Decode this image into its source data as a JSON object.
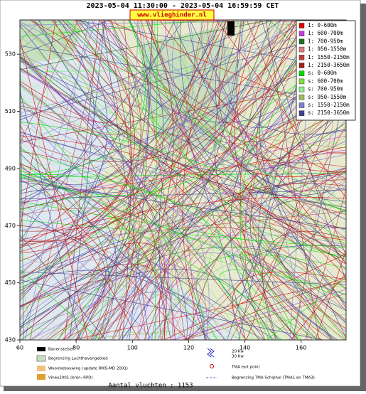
{
  "header": {
    "title": "2023-05-04 11:30:00 - 2023-05-04 16:59:59 CET",
    "site": "www.vlieghinder.nl"
  },
  "map": {
    "xlim": [
      60,
      176
    ],
    "ylim": [
      430,
      542
    ],
    "xticks": [
      60,
      80,
      100,
      120,
      140,
      160
    ],
    "yticks": [
      430,
      450,
      470,
      490,
      510,
      530
    ]
  },
  "legend": [
    {
      "label": "1: 0-600m",
      "color": "#e00000"
    },
    {
      "label": "1: 600-700m",
      "color": "#c040e0"
    },
    {
      "label": "1: 700-950m",
      "color": "#207020"
    },
    {
      "label": "1: 950-1550m",
      "color": "#e08080"
    },
    {
      "label": "1: 1550-2150m",
      "color": "#c04040"
    },
    {
      "label": "1: 2150-3650m",
      "color": "#a02020"
    },
    {
      "label": "s: 0-600m",
      "color": "#00e000"
    },
    {
      "label": "s: 600-700m",
      "color": "#80e040"
    },
    {
      "label": "s: 700-950m",
      "color": "#90f090"
    },
    {
      "label": "s: 950-1550m",
      "color": "#a0c060"
    },
    {
      "label": "s: 1550-2150m",
      "color": "#8080d0"
    },
    {
      "label": "s: 2150-3650m",
      "color": "#404090"
    }
  ],
  "key": {
    "runways": "Banenstelsel",
    "airport_boundary": "Begrenzing Luchthavengebied",
    "housing": "Woonbebouwing (update RWS-MD 2001)",
    "vinex": "Vinex2001 (bron: RPD)",
    "kw20": "20 Kw",
    "kw30": "30 Kw",
    "tma_exit": "TMA exit point",
    "tma_boundary": "Begrenzing TMA Schiphol  (TMA1 en TMA3)"
  },
  "footer": "Aantal vluchten : 1153"
}
